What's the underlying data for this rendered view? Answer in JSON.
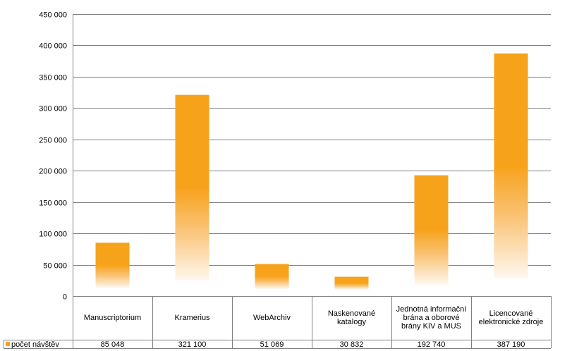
{
  "chart_data": {
    "type": "bar",
    "categories": [
      "Manuscriptorium",
      "Kramerius",
      "WebArchiv",
      "Naskenované katalogy",
      "Jednotná informační brána a oborové brány KIV a MUS",
      "Licencované elektronické zdroje"
    ],
    "series": [
      {
        "name": "počet návštěv",
        "values": [
          85048,
          321100,
          51069,
          30832,
          192740,
          387190
        ],
        "value_labels": [
          "85 048",
          "321 100",
          "51 069",
          "30 832",
          "192 740",
          "387 190"
        ]
      }
    ],
    "ylim": [
      0,
      450000
    ],
    "yticks": [
      0,
      50000,
      100000,
      150000,
      200000,
      250000,
      300000,
      350000,
      400000,
      450000
    ],
    "ytick_labels": [
      "0",
      "50 000",
      "100 000",
      "150 000",
      "200 000",
      "250 000",
      "300 000",
      "350 000",
      "400 000",
      "450 000"
    ],
    "grid": true,
    "legend": "bottom-left (data table)",
    "colors": {
      "bar": "#F7A21B",
      "grid": "#808080",
      "text": "#000000"
    }
  }
}
